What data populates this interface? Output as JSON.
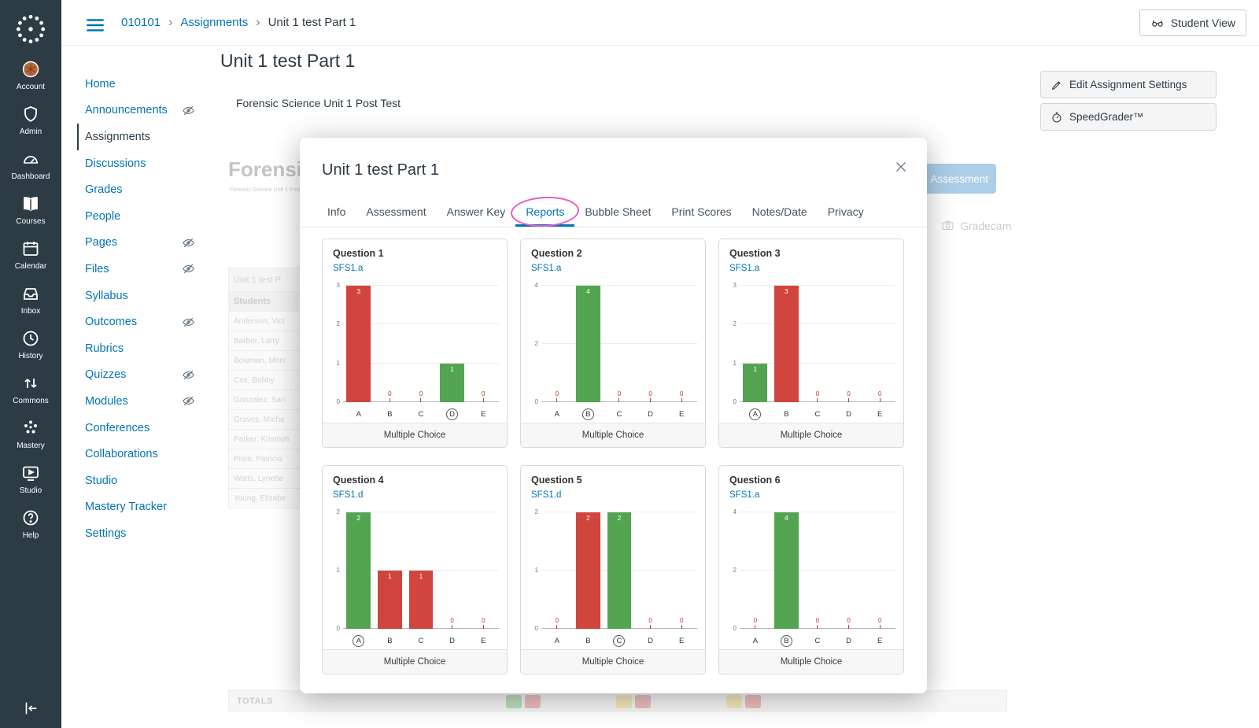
{
  "accent_colors": {
    "link_blue": "#0374B5",
    "bar_red": "#D0453E",
    "bar_green": "#53A451",
    "annotation_pink": "#E75BC3",
    "sidebar_bg": "#2D3B45"
  },
  "global_nav": {
    "items": [
      {
        "label": "Account",
        "icon": "account"
      },
      {
        "label": "Admin",
        "icon": "admin"
      },
      {
        "label": "Dashboard",
        "icon": "dashboard"
      },
      {
        "label": "Courses",
        "icon": "courses"
      },
      {
        "label": "Calendar",
        "icon": "calendar"
      },
      {
        "label": "Inbox",
        "icon": "inbox"
      },
      {
        "label": "History",
        "icon": "history"
      },
      {
        "label": "Commons",
        "icon": "commons"
      },
      {
        "label": "Mastery",
        "icon": "mastery"
      },
      {
        "label": "Studio",
        "icon": "studio"
      },
      {
        "label": "Help",
        "icon": "help"
      }
    ]
  },
  "topbar": {
    "breadcrumb": [
      {
        "label": "010101",
        "link": true
      },
      {
        "label": "Assignments",
        "link": true
      },
      {
        "label": "Unit 1 test Part 1",
        "link": false
      }
    ],
    "student_view_label": "Student View"
  },
  "course_nav": [
    {
      "label": "Home"
    },
    {
      "label": "Announcements",
      "hidden": true
    },
    {
      "label": "Assignments",
      "active": true
    },
    {
      "label": "Discussions"
    },
    {
      "label": "Grades"
    },
    {
      "label": "People"
    },
    {
      "label": "Pages",
      "hidden": true
    },
    {
      "label": "Files",
      "hidden": true
    },
    {
      "label": "Syllabus"
    },
    {
      "label": "Outcomes",
      "hidden": true
    },
    {
      "label": "Rubrics"
    },
    {
      "label": "Quizzes",
      "hidden": true
    },
    {
      "label": "Modules",
      "hidden": true
    },
    {
      "label": "Conferences"
    },
    {
      "label": "Collaborations"
    },
    {
      "label": "Studio"
    },
    {
      "label": "Mastery Tracker"
    },
    {
      "label": "Settings"
    }
  ],
  "main": {
    "page_title": "Unit 1 test Part 1",
    "subtitle": "Forensic Science Unit 1 Post Test",
    "edit_settings_label": "Edit Assignment Settings",
    "speedgrader_label": "SpeedGrader™"
  },
  "background_page": {
    "faded_heading": "Forensic",
    "faded_subheading": "Forensic Science Unit 1 Post Test",
    "assessment_button_label": "Assessment",
    "gradecam_label": "Gradecam",
    "table": {
      "title_cell": "Unit 1 test P",
      "students_header": "Students",
      "student_rows": [
        "Anderson, Vict",
        "Barber, Larry",
        "Bowman, Moni",
        "Cox, Bobby",
        "Gonzalez, San",
        "Graves, Micha",
        "Parker, Kristoph",
        "Price, Patricia",
        "Watts, Lynette",
        "Young, Elizabe"
      ],
      "totals_label": "TOTALS",
      "totals_badges": [
        [
          "green",
          "red"
        ],
        [
          "yellow",
          "red"
        ],
        [
          "yellow",
          "red"
        ]
      ]
    }
  },
  "modal": {
    "title": "Unit 1 test Part 1",
    "tabs": [
      {
        "label": "Info"
      },
      {
        "label": "Assessment"
      },
      {
        "label": "Answer Key"
      },
      {
        "label": "Reports",
        "active": true,
        "annotated": true
      },
      {
        "label": "Bubble Sheet"
      },
      {
        "label": "Print Scores"
      },
      {
        "label": "Notes/Date"
      },
      {
        "label": "Privacy"
      }
    ]
  },
  "chart_data": [
    {
      "type": "bar",
      "title": "Question 1",
      "standard": "SFS1.a",
      "categories": [
        "A",
        "B",
        "C",
        "D",
        "E"
      ],
      "values": [
        3,
        0,
        0,
        1,
        0
      ],
      "correct": "D",
      "yticks": [
        0,
        1,
        2,
        3
      ],
      "ylim": [
        0,
        3
      ],
      "footer": "Multiple Choice"
    },
    {
      "type": "bar",
      "title": "Question 2",
      "standard": "SFS1.a",
      "categories": [
        "A",
        "B",
        "C",
        "D",
        "E"
      ],
      "values": [
        0,
        4,
        0,
        0,
        0
      ],
      "correct": "B",
      "yticks": [
        0,
        2,
        4
      ],
      "ylim": [
        0,
        4
      ],
      "footer": "Multiple Choice"
    },
    {
      "type": "bar",
      "title": "Question 3",
      "standard": "SFS1.a",
      "categories": [
        "A",
        "B",
        "C",
        "D",
        "E"
      ],
      "values": [
        1,
        3,
        0,
        0,
        0
      ],
      "correct": "A",
      "yticks": [
        0,
        1,
        2,
        3
      ],
      "ylim": [
        0,
        3
      ],
      "footer": "Multiple Choice"
    },
    {
      "type": "bar",
      "title": "Question 4",
      "standard": "SFS1.d",
      "categories": [
        "A",
        "B",
        "C",
        "D",
        "E"
      ],
      "values": [
        2,
        1,
        1,
        0,
        0
      ],
      "correct": "A",
      "yticks": [
        0,
        1,
        2
      ],
      "ylim": [
        0,
        2
      ],
      "footer": "Multiple Choice"
    },
    {
      "type": "bar",
      "title": "Question 5",
      "standard": "SFS1.d",
      "categories": [
        "A",
        "B",
        "C",
        "D",
        "E"
      ],
      "values": [
        0,
        2,
        2,
        0,
        0
      ],
      "correct": "C",
      "yticks": [
        0,
        1,
        2
      ],
      "ylim": [
        0,
        2
      ],
      "footer": "Multiple Choice"
    },
    {
      "type": "bar",
      "title": "Question 6",
      "standard": "SFS1.a",
      "categories": [
        "A",
        "B",
        "C",
        "D",
        "E"
      ],
      "values": [
        0,
        4,
        0,
        0,
        0
      ],
      "correct": "B",
      "yticks": [
        0,
        2,
        4
      ],
      "ylim": [
        0,
        4
      ],
      "footer": "Multiple Choice"
    }
  ]
}
